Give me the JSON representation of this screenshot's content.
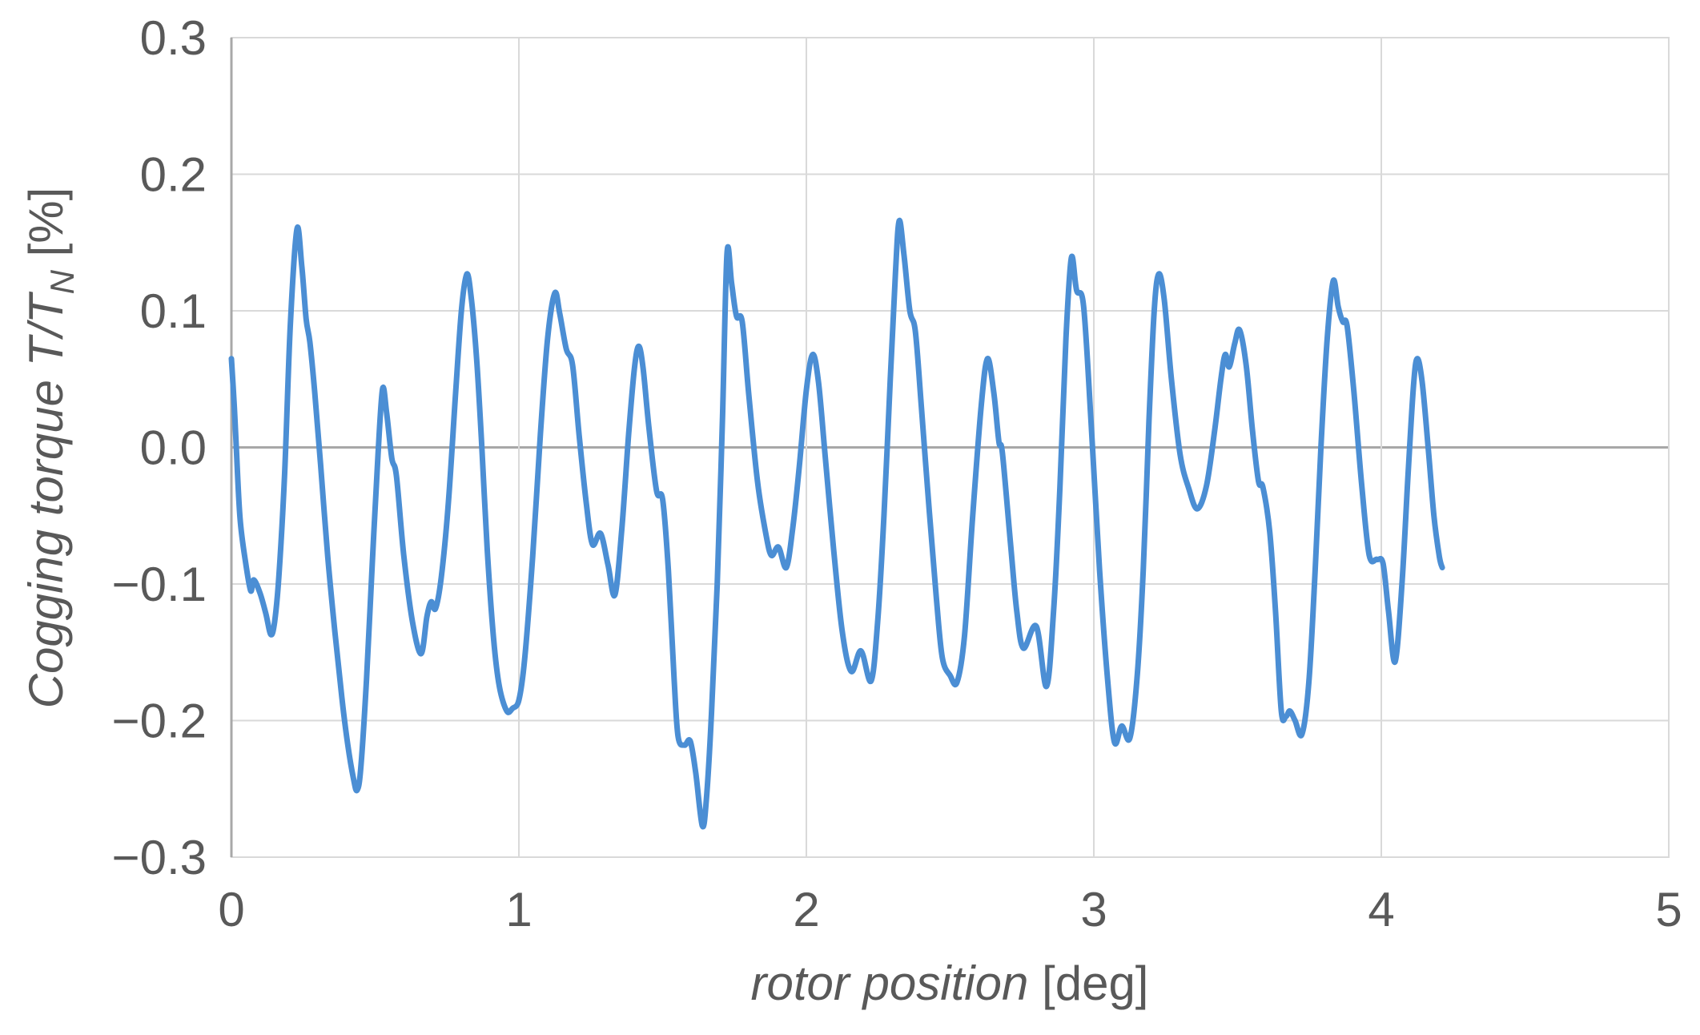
{
  "chart_data": {
    "type": "line",
    "title": "",
    "xlabel_italic": "rotor position",
    "xlabel_regular": " [deg]",
    "ylabel_italic": "Cogging torque  T/T",
    "ylabel_subscript": "N",
    "ylabel_regular": " [%]",
    "xlim": [
      0,
      5
    ],
    "ylim": [
      -0.3,
      0.3
    ],
    "grid": true,
    "legend_position": "none",
    "x_ticks": {
      "values": [
        0,
        1,
        2,
        3,
        4,
        5
      ],
      "labels": [
        "0",
        "1",
        "2",
        "3",
        "4",
        "5"
      ]
    },
    "y_ticks": {
      "values": [
        0.3,
        0.2,
        0.1,
        0.0,
        -0.1,
        -0.2,
        -0.3
      ],
      "labels": [
        "0.3",
        "0.2",
        "0.1",
        "0.0",
        "−0.1",
        "−0.2",
        "−0.3"
      ]
    },
    "colors": {
      "line": "#4B8ED4",
      "gridline": "#D9D9D9",
      "zero_line": "#A8A8A8",
      "axis_line": "#A8A8A8",
      "border": "#D9D9D9",
      "tick_label": "#595959"
    },
    "series": [
      {
        "name": "cogging torque",
        "points": [
          [
            0.0,
            0.065
          ],
          [
            0.01,
            0.03
          ],
          [
            0.017,
            0.0
          ],
          [
            0.03,
            -0.052
          ],
          [
            0.05,
            -0.085
          ],
          [
            0.067,
            -0.105
          ],
          [
            0.078,
            -0.097
          ],
          [
            0.1,
            -0.107
          ],
          [
            0.12,
            -0.122
          ],
          [
            0.137,
            -0.137
          ],
          [
            0.15,
            -0.128
          ],
          [
            0.165,
            -0.095
          ],
          [
            0.185,
            -0.02
          ],
          [
            0.205,
            0.09
          ],
          [
            0.228,
            0.16
          ],
          [
            0.245,
            0.132
          ],
          [
            0.26,
            0.094
          ],
          [
            0.273,
            0.077
          ],
          [
            0.29,
            0.04
          ],
          [
            0.31,
            -0.012
          ],
          [
            0.335,
            -0.08
          ],
          [
            0.36,
            -0.135
          ],
          [
            0.384,
            -0.183
          ],
          [
            0.405,
            -0.218
          ],
          [
            0.425,
            -0.243
          ],
          [
            0.437,
            -0.251
          ],
          [
            0.45,
            -0.235
          ],
          [
            0.47,
            -0.17
          ],
          [
            0.49,
            -0.085
          ],
          [
            0.51,
            -0.005
          ],
          [
            0.526,
            0.043
          ],
          [
            0.54,
            0.025
          ],
          [
            0.558,
            -0.008
          ],
          [
            0.574,
            -0.021
          ],
          [
            0.6,
            -0.08
          ],
          [
            0.63,
            -0.128
          ],
          [
            0.66,
            -0.151
          ],
          [
            0.68,
            -0.124
          ],
          [
            0.695,
            -0.113
          ],
          [
            0.71,
            -0.118
          ],
          [
            0.73,
            -0.095
          ],
          [
            0.755,
            -0.04
          ],
          [
            0.78,
            0.04
          ],
          [
            0.8,
            0.1
          ],
          [
            0.819,
            0.127
          ],
          [
            0.835,
            0.108
          ],
          [
            0.853,
            0.065
          ],
          [
            0.87,
            0.005
          ],
          [
            0.89,
            -0.075
          ],
          [
            0.912,
            -0.14
          ],
          [
            0.932,
            -0.175
          ],
          [
            0.958,
            -0.193
          ],
          [
            0.978,
            -0.191
          ],
          [
            1.0,
            -0.185
          ],
          [
            1.02,
            -0.155
          ],
          [
            1.048,
            -0.08
          ],
          [
            1.075,
            0.01
          ],
          [
            1.1,
            0.08
          ],
          [
            1.125,
            0.113
          ],
          [
            1.142,
            0.098
          ],
          [
            1.165,
            0.072
          ],
          [
            1.187,
            0.06
          ],
          [
            1.21,
            0.008
          ],
          [
            1.235,
            -0.042
          ],
          [
            1.256,
            -0.071
          ],
          [
            1.284,
            -0.063
          ],
          [
            1.31,
            -0.086
          ],
          [
            1.334,
            -0.108
          ],
          [
            1.358,
            -0.06
          ],
          [
            1.382,
            0.01
          ],
          [
            1.402,
            0.058
          ],
          [
            1.417,
            0.074
          ],
          [
            1.432,
            0.058
          ],
          [
            1.452,
            0.015
          ],
          [
            1.479,
            -0.032
          ],
          [
            1.5,
            -0.038
          ],
          [
            1.52,
            -0.09
          ],
          [
            1.54,
            -0.17
          ],
          [
            1.554,
            -0.212
          ],
          [
            1.576,
            -0.218
          ],
          [
            1.596,
            -0.215
          ],
          [
            1.615,
            -0.238
          ],
          [
            1.638,
            -0.277
          ],
          [
            1.652,
            -0.258
          ],
          [
            1.67,
            -0.195
          ],
          [
            1.69,
            -0.1
          ],
          [
            1.708,
            0.02
          ],
          [
            1.724,
            0.142
          ],
          [
            1.74,
            0.12
          ],
          [
            1.757,
            0.096
          ],
          [
            1.777,
            0.092
          ],
          [
            1.8,
            0.038
          ],
          [
            1.83,
            -0.025
          ],
          [
            1.858,
            -0.062
          ],
          [
            1.878,
            -0.079
          ],
          [
            1.903,
            -0.073
          ],
          [
            1.93,
            -0.088
          ],
          [
            1.952,
            -0.06
          ],
          [
            1.975,
            -0.015
          ],
          [
            2.0,
            0.042
          ],
          [
            2.022,
            0.068
          ],
          [
            2.042,
            0.048
          ],
          [
            2.065,
            -0.005
          ],
          [
            2.095,
            -0.075
          ],
          [
            2.125,
            -0.135
          ],
          [
            2.156,
            -0.164
          ],
          [
            2.19,
            -0.149
          ],
          [
            2.225,
            -0.171
          ],
          [
            2.248,
            -0.128
          ],
          [
            2.27,
            -0.05
          ],
          [
            2.292,
            0.05
          ],
          [
            2.31,
            0.128
          ],
          [
            2.323,
            0.166
          ],
          [
            2.34,
            0.14
          ],
          [
            2.36,
            0.1
          ],
          [
            2.379,
            0.085
          ],
          [
            2.4,
            0.03
          ],
          [
            2.428,
            -0.048
          ],
          [
            2.452,
            -0.11
          ],
          [
            2.473,
            -0.154
          ],
          [
            2.5,
            -0.167
          ],
          [
            2.524,
            -0.172
          ],
          [
            2.55,
            -0.138
          ],
          [
            2.578,
            -0.052
          ],
          [
            2.608,
            0.03
          ],
          [
            2.63,
            0.065
          ],
          [
            2.652,
            0.04
          ],
          [
            2.67,
            0.004
          ],
          [
            2.682,
            -0.004
          ],
          [
            2.71,
            -0.07
          ],
          [
            2.732,
            -0.12
          ],
          [
            2.755,
            -0.147
          ],
          [
            2.8,
            -0.131
          ],
          [
            2.835,
            -0.175
          ],
          [
            2.86,
            -0.12
          ],
          [
            2.882,
            -0.03
          ],
          [
            2.903,
            0.08
          ],
          [
            2.922,
            0.139
          ],
          [
            2.94,
            0.115
          ],
          [
            2.964,
            0.104
          ],
          [
            2.99,
            0.02
          ],
          [
            3.02,
            -0.09
          ],
          [
            3.048,
            -0.17
          ],
          [
            3.072,
            -0.216
          ],
          [
            3.097,
            -0.204
          ],
          [
            3.125,
            -0.213
          ],
          [
            3.15,
            -0.17
          ],
          [
            3.172,
            -0.09
          ],
          [
            3.192,
            0.02
          ],
          [
            3.21,
            0.1
          ],
          [
            3.226,
            0.127
          ],
          [
            3.245,
            0.108
          ],
          [
            3.27,
            0.05
          ],
          [
            3.3,
            -0.005
          ],
          [
            3.33,
            -0.03
          ],
          [
            3.36,
            -0.045
          ],
          [
            3.392,
            -0.028
          ],
          [
            3.42,
            0.012
          ],
          [
            3.442,
            0.05
          ],
          [
            3.457,
            0.068
          ],
          [
            3.471,
            0.059
          ],
          [
            3.49,
            0.076
          ],
          [
            3.507,
            0.086
          ],
          [
            3.53,
            0.06
          ],
          [
            3.552,
            0.012
          ],
          [
            3.573,
            -0.025
          ],
          [
            3.588,
            -0.029
          ],
          [
            3.612,
            -0.062
          ],
          [
            3.632,
            -0.12
          ],
          [
            3.652,
            -0.193
          ],
          [
            3.668,
            -0.197
          ],
          [
            3.682,
            -0.193
          ],
          [
            3.7,
            -0.2
          ],
          [
            3.724,
            -0.21
          ],
          [
            3.748,
            -0.172
          ],
          [
            3.77,
            -0.09
          ],
          [
            3.79,
            0.0
          ],
          [
            3.812,
            0.08
          ],
          [
            3.833,
            0.122
          ],
          [
            3.85,
            0.103
          ],
          [
            3.866,
            0.092
          ],
          [
            3.881,
            0.089
          ],
          [
            3.905,
            0.04
          ],
          [
            3.932,
            -0.028
          ],
          [
            3.958,
            -0.079
          ],
          [
            3.985,
            -0.082
          ],
          [
            4.006,
            -0.085
          ],
          [
            4.025,
            -0.12
          ],
          [
            4.048,
            -0.157
          ],
          [
            4.072,
            -0.1
          ],
          [
            4.093,
            -0.02
          ],
          [
            4.112,
            0.045
          ],
          [
            4.125,
            0.065
          ],
          [
            4.142,
            0.048
          ],
          [
            4.163,
            0.0
          ],
          [
            4.183,
            -0.05
          ],
          [
            4.202,
            -0.08
          ],
          [
            4.212,
            -0.088
          ]
        ]
      }
    ]
  }
}
